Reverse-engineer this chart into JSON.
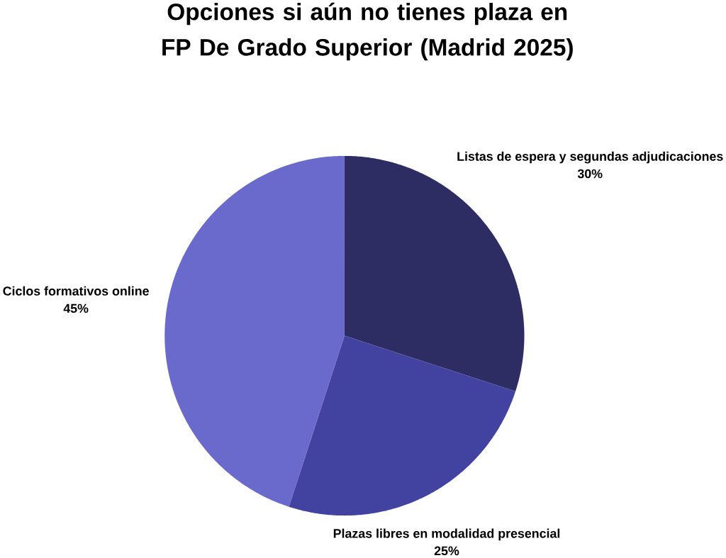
{
  "chart_data": {
    "type": "pie",
    "title": "Opciones si aún no tienes plaza en FP De Grado Superior (Madrid 2025)",
    "categories": [
      "Listas de espera y segundas adjudicaciones",
      "Plazas libres en modalidad presencial",
      "Ciclos formativos online"
    ],
    "values": [
      30,
      25,
      45
    ],
    "value_labels": [
      "30%",
      "25%",
      "45%"
    ],
    "colors": [
      "#2d2d63",
      "#4242a0",
      "#6a6acd"
    ]
  }
}
